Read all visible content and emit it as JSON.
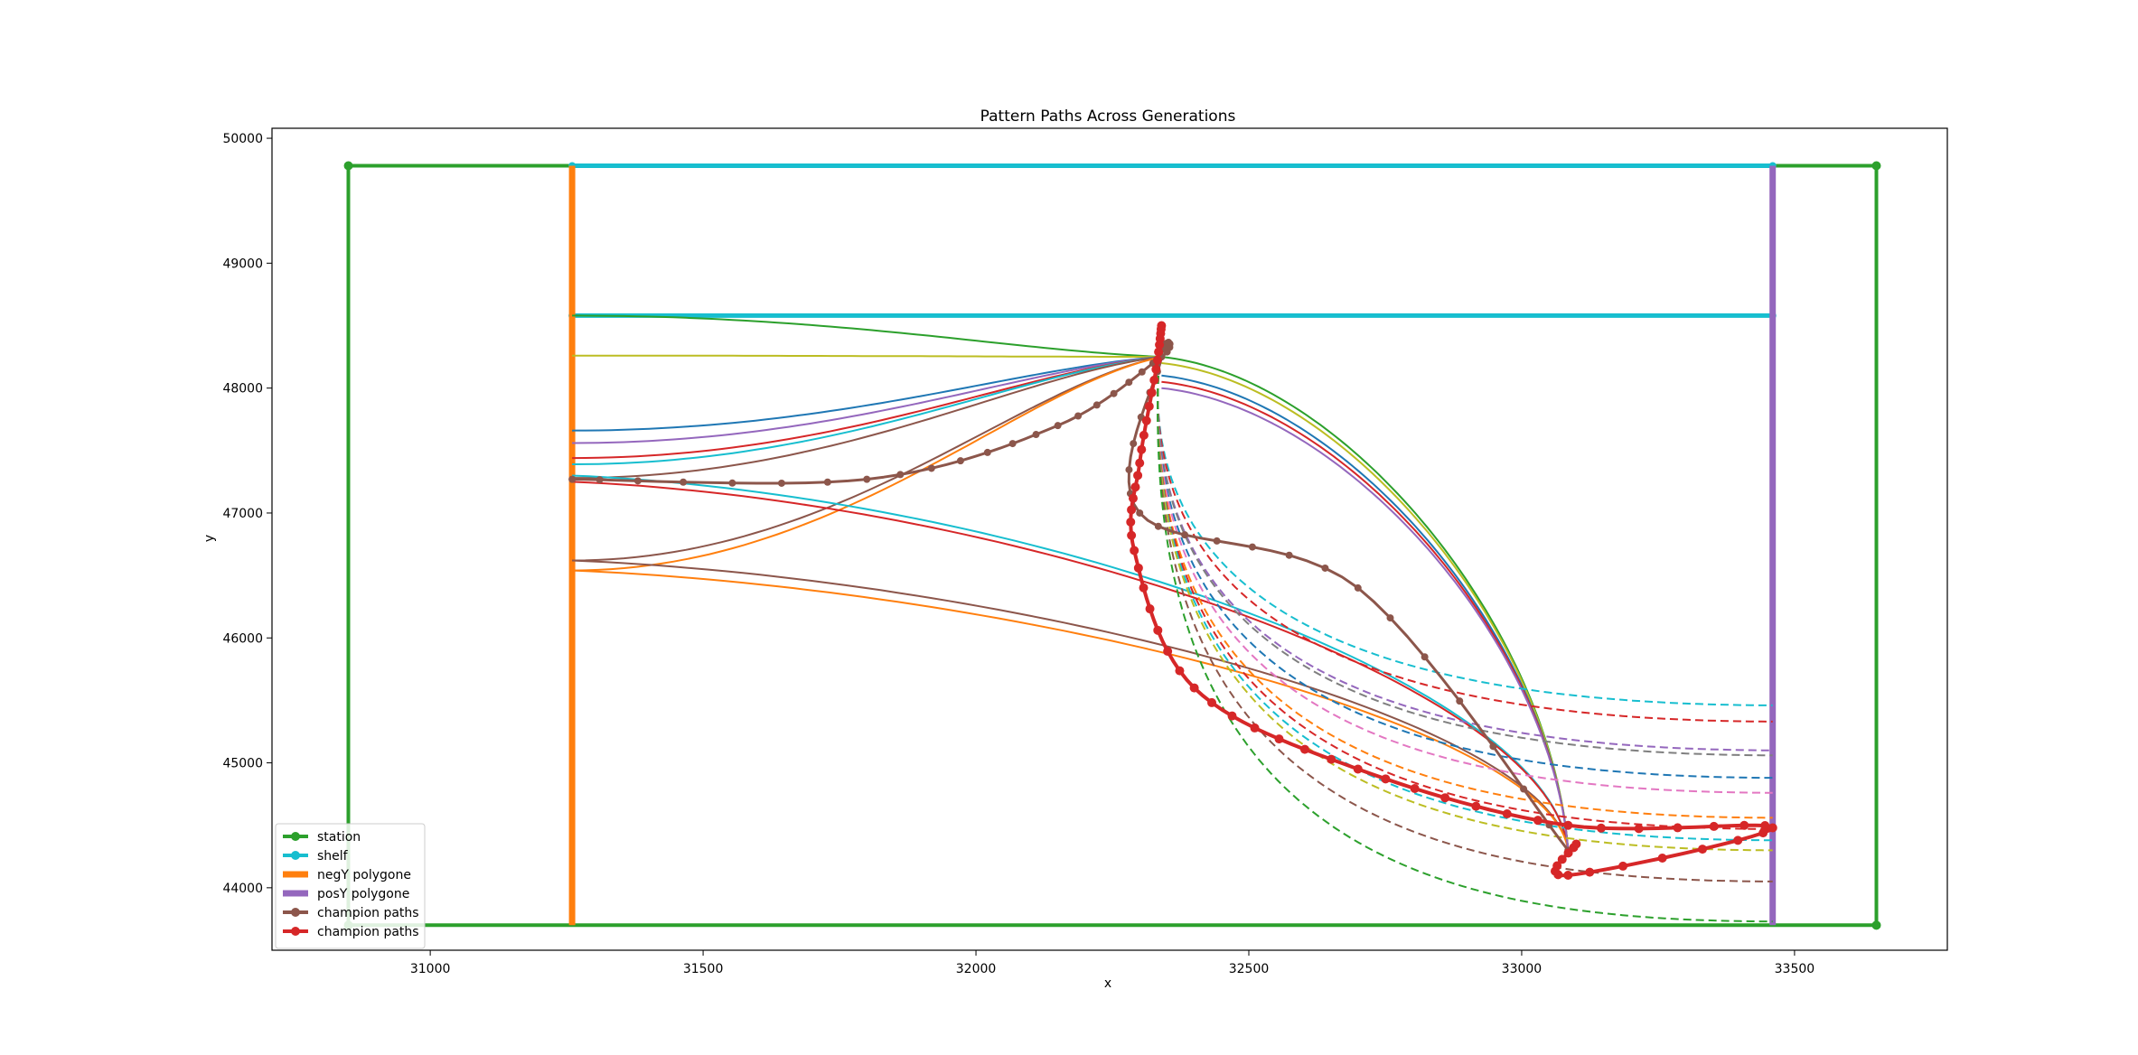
{
  "chart_data": {
    "type": "line",
    "title": "Pattern Paths Across Generations",
    "xlabel": "x",
    "ylabel": "y",
    "xlim": [
      30710,
      33780
    ],
    "ylim": [
      43500,
      50080
    ],
    "xticks": [
      31000,
      31500,
      32000,
      32500,
      33000,
      33500
    ],
    "yticks": [
      44000,
      45000,
      46000,
      47000,
      48000,
      49000,
      50000
    ],
    "grid": false,
    "legend_position": "lower-left",
    "legend": [
      {
        "label": "station",
        "color": "#2ca02c",
        "kind": "line-marker"
      },
      {
        "label": "shelf",
        "color": "#17becf",
        "kind": "line-marker"
      },
      {
        "label": "negY polygone",
        "color": "#ff7f0e",
        "kind": "thick-line"
      },
      {
        "label": "posY polygone",
        "color": "#9467bd",
        "kind": "thick-line"
      },
      {
        "label": "champion paths",
        "color": "#8c564b",
        "kind": "line-marker"
      },
      {
        "label": "champion paths",
        "color": "#d62728",
        "kind": "line-marker"
      }
    ],
    "series": [
      {
        "name": "station",
        "color": "#2ca02c",
        "style": "boundary",
        "x": [
          30850,
          33650,
          33650,
          30850,
          30850
        ],
        "y": [
          49780,
          49780,
          43700,
          43700,
          49780
        ]
      },
      {
        "name": "shelf",
        "color": "#17becf",
        "style": "shelf",
        "x": [
          31260,
          33460
        ],
        "y": [
          49780,
          49780
        ],
        "y2": 48580
      },
      {
        "name": "negY polygone",
        "color": "#ff7f0e",
        "style": "vertical",
        "x": [
          31260,
          31260
        ],
        "y": [
          43700,
          49780
        ]
      },
      {
        "name": "posY polygone",
        "color": "#9467bd",
        "style": "vertical",
        "x": [
          33460,
          33460
        ],
        "y": [
          43700,
          49780
        ]
      }
    ],
    "path_families": {
      "left_segment": {
        "from_x": 31260,
        "to_x": 32340,
        "to_y": 48250,
        "paths": [
          {
            "y0": 48580,
            "color": "#2ca02c"
          },
          {
            "y0": 48260,
            "color": "#bcbd22"
          },
          {
            "y0": 47660,
            "color": "#1f77b4"
          },
          {
            "y0": 47560,
            "color": "#9467bd"
          },
          {
            "y0": 47440,
            "color": "#d62728"
          },
          {
            "y0": 47390,
            "color": "#17becf"
          },
          {
            "y0": 47280,
            "color": "#8c564b"
          },
          {
            "y0": 46620,
            "color": "#8c564b"
          },
          {
            "y0": 46540,
            "color": "#ff7f0e"
          }
        ]
      },
      "middle_segment": {
        "to_x": 33085,
        "to_y": 44300,
        "paths": [
          {
            "x0": 31260,
            "y0": 47300,
            "color": "#17becf"
          },
          {
            "x0": 31260,
            "y0": 47250,
            "color": "#d62728"
          },
          {
            "x0": 31260,
            "y0": 46620,
            "color": "#8c564b"
          },
          {
            "x0": 31260,
            "y0": 46540,
            "color": "#ff7f0e"
          },
          {
            "x0": 32340,
            "y0": 48250,
            "color": "#2ca02c"
          },
          {
            "x0": 32340,
            "y0": 48200,
            "color": "#bcbd22"
          },
          {
            "x0": 32340,
            "y0": 48100,
            "color": "#1f77b4"
          },
          {
            "x0": 32340,
            "y0": 48050,
            "color": "#d62728"
          },
          {
            "x0": 32340,
            "y0": 48000,
            "color": "#9467bd"
          }
        ]
      },
      "dashed_to_right": {
        "from_x": 32335,
        "from_y": 48200,
        "to_x": 33460,
        "paths": [
          {
            "y1": 45460,
            "color": "#17becf"
          },
          {
            "y1": 45330,
            "color": "#d62728"
          },
          {
            "y1": 45100,
            "color": "#9467bd"
          },
          {
            "y1": 45060,
            "color": "#7f7f7f"
          },
          {
            "y1": 44880,
            "color": "#1f77b4"
          },
          {
            "y1": 44760,
            "color": "#e377c2"
          },
          {
            "y1": 44560,
            "color": "#ff7f0e"
          },
          {
            "y1": 44470,
            "color": "#d62728"
          },
          {
            "y1": 44380,
            "color": "#17becf"
          },
          {
            "y1": 44300,
            "color": "#bcbd22"
          },
          {
            "y1": 44050,
            "color": "#8c564b"
          },
          {
            "y1": 43730,
            "color": "#2ca02c"
          }
        ]
      },
      "champion_brown": {
        "color": "#8c564b",
        "points": [
          [
            31260,
            47270
          ],
          [
            31800,
            47270
          ],
          [
            32150,
            47700
          ],
          [
            32340,
            48250
          ],
          [
            32340,
            48250
          ],
          [
            32300,
            47000
          ],
          [
            32700,
            46400
          ],
          [
            33085,
            44300
          ]
        ]
      },
      "champion_red": {
        "color": "#d62728",
        "points": [
          [
            32340,
            48500
          ],
          [
            32330,
            48150
          ],
          [
            32300,
            47400
          ],
          [
            32290,
            46700
          ],
          [
            32400,
            45600
          ],
          [
            32700,
            44950
          ],
          [
            33085,
            44500
          ],
          [
            33460,
            44480
          ],
          [
            33085,
            44100
          ],
          [
            33100,
            44350
          ]
        ]
      }
    }
  }
}
